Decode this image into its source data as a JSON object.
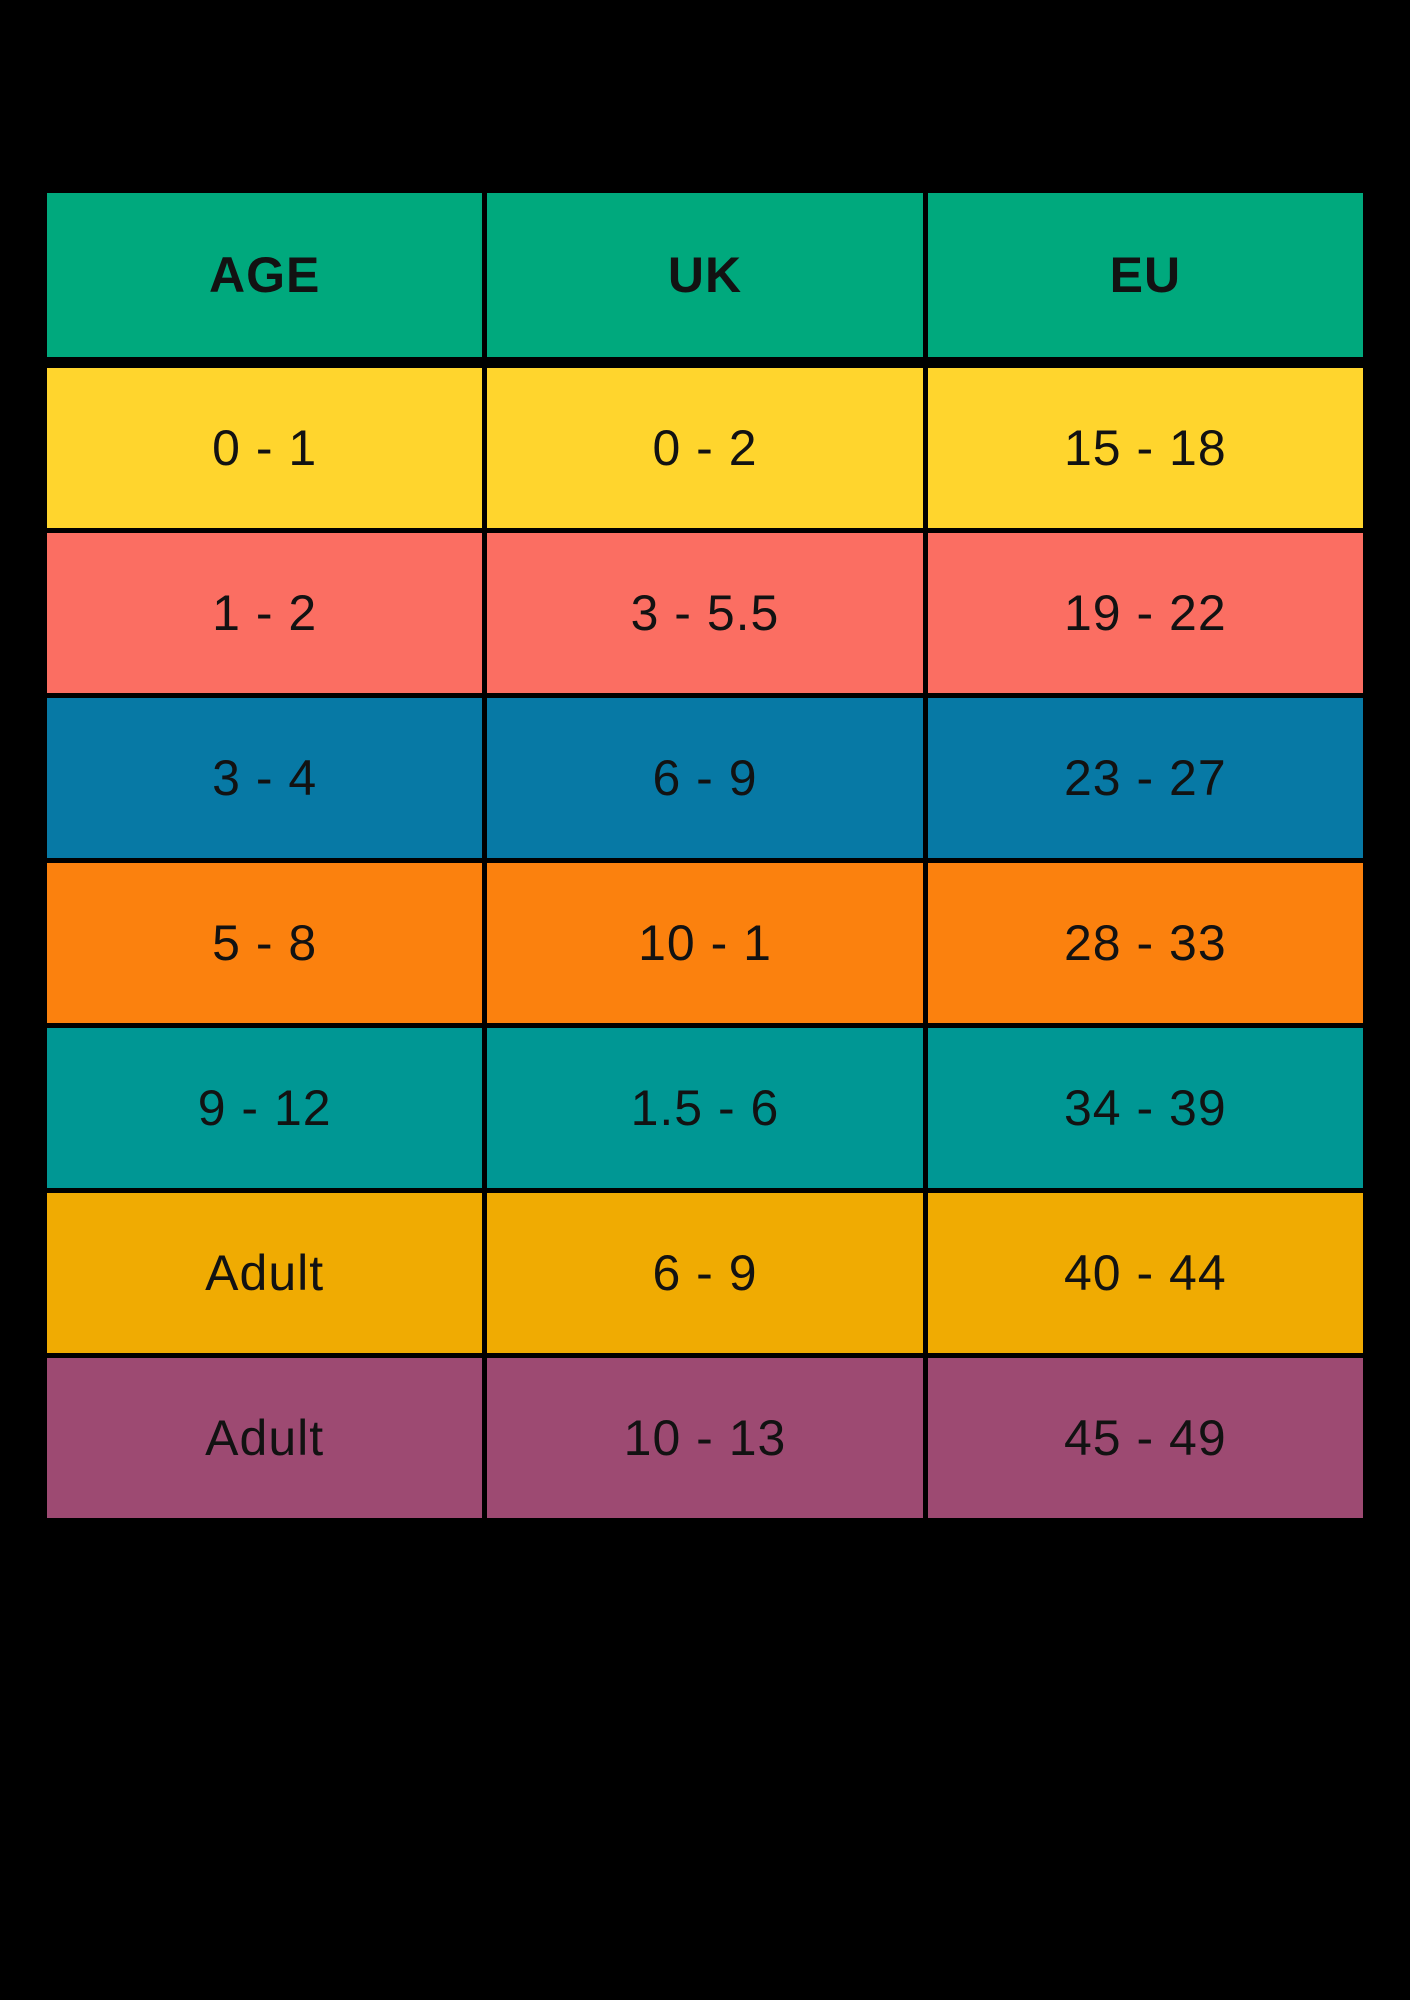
{
  "chart_data": {
    "type": "table",
    "columns": [
      "AGE",
      "UK",
      "EU"
    ],
    "rows": [
      [
        "0 - 1",
        "0 - 2",
        "15 - 18"
      ],
      [
        "1 - 2",
        "3 - 5.5",
        "19 - 22"
      ],
      [
        "3 - 4",
        "6 - 9",
        "23 - 27"
      ],
      [
        "5 - 8",
        "10 - 1",
        "28 - 33"
      ],
      [
        "9 - 12",
        "1.5 - 6",
        "34 - 39"
      ],
      [
        "Adult",
        "6 - 9",
        "40 - 44"
      ],
      [
        "Adult",
        "10 - 13",
        "45 - 49"
      ]
    ],
    "header_bg": "#00A97D",
    "row_colors": [
      "#FFD52D",
      "#FB6E62",
      "#0779A5",
      "#FB810E",
      "#009794",
      "#F0AB02",
      "#9D4A72"
    ],
    "text_color": "#121212",
    "background": "#000000"
  }
}
